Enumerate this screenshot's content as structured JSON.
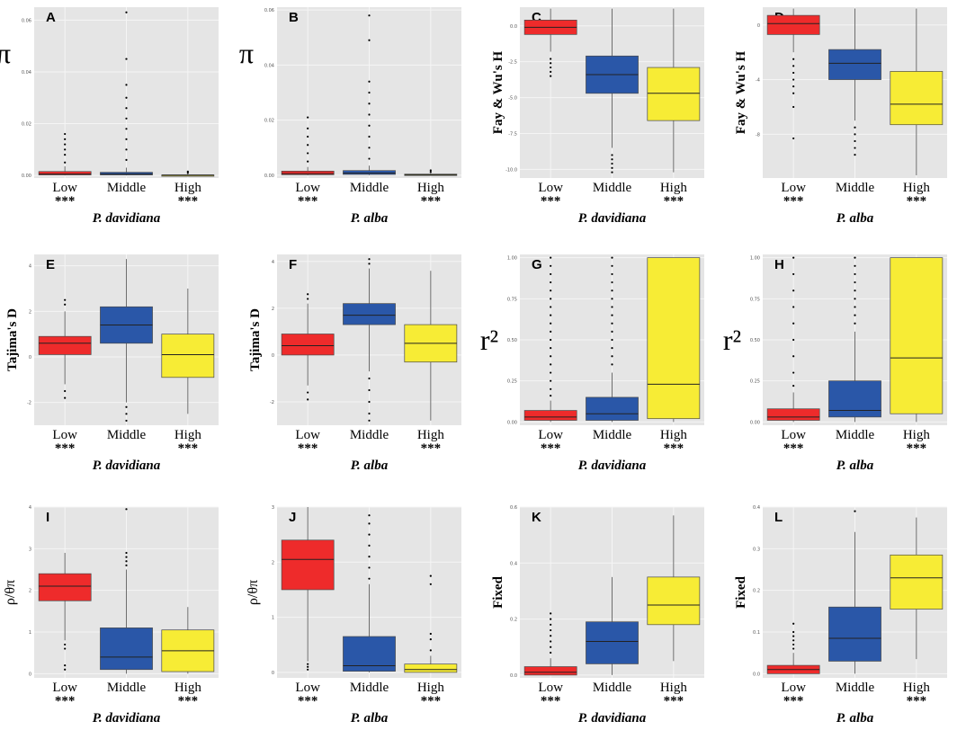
{
  "colors": {
    "panel_bg": "#e5e5e5",
    "grid": "#f5f5f5",
    "Low": "#ee2b2b",
    "Middle": "#2a57a8",
    "High": "#f7ec35"
  },
  "chart_data": [
    {
      "type": "box",
      "panel": "A",
      "ylabel": "π",
      "species": "P. davidiana",
      "ylim": [
        -0.001,
        0.065
      ],
      "yticks": [
        0.0,
        0.02,
        0.04,
        0.06
      ],
      "ytick_labels": [
        "0.00",
        "0.02",
        "0.04",
        "0.06"
      ],
      "categories": [
        "Low",
        "Middle",
        "High"
      ],
      "significance": [
        "***",
        "",
        "***"
      ],
      "boxes": [
        {
          "name": "Low",
          "whislo": 0.0,
          "q1": 0.0002,
          "med": 0.0005,
          "q3": 0.0015,
          "whishi": 0.0035,
          "fliers": [
            0.005,
            0.008,
            0.01,
            0.012,
            0.014,
            0.016
          ]
        },
        {
          "name": "Middle",
          "whislo": 0.0,
          "q1": 0.0002,
          "med": 0.0005,
          "q3": 0.0012,
          "whishi": 0.003,
          "fliers": [
            0.006,
            0.01,
            0.014,
            0.018,
            0.022,
            0.026,
            0.03,
            0.035,
            0.045,
            0.063
          ]
        },
        {
          "name": "High",
          "whislo": 0.0,
          "q1": 0.0,
          "med": 0.0001,
          "q3": 0.0002,
          "whishi": 0.0006,
          "fliers": [
            0.001,
            0.0015
          ]
        }
      ]
    },
    {
      "type": "box",
      "panel": "B",
      "ylabel": "π",
      "species": "P. alba",
      "ylim": [
        -0.001,
        0.061
      ],
      "yticks": [
        0.0,
        0.02,
        0.04,
        0.06
      ],
      "ytick_labels": [
        "0.00",
        "0.02",
        "0.04",
        "0.06"
      ],
      "categories": [
        "Low",
        "Middle",
        "High"
      ],
      "significance": [
        "***",
        "",
        "***"
      ],
      "boxes": [
        {
          "name": "Low",
          "whislo": 0.0,
          "q1": 0.0002,
          "med": 0.0006,
          "q3": 0.0015,
          "whishi": 0.003,
          "fliers": [
            0.005,
            0.008,
            0.011,
            0.014,
            0.017,
            0.021
          ]
        },
        {
          "name": "Middle",
          "whislo": 0.0,
          "q1": 0.0003,
          "med": 0.0008,
          "q3": 0.0017,
          "whishi": 0.0035,
          "fliers": [
            0.006,
            0.01,
            0.014,
            0.018,
            0.022,
            0.026,
            0.03,
            0.034,
            0.049,
            0.058
          ]
        },
        {
          "name": "High",
          "whislo": 0.0,
          "q1": 0.0,
          "med": 0.0002,
          "q3": 0.0004,
          "whishi": 0.0008,
          "fliers": [
            0.0012,
            0.0018
          ]
        }
      ]
    },
    {
      "type": "box",
      "panel": "C",
      "ylabel": "Fay & Wu's H",
      "species": "P. davidiana",
      "ylim": [
        -10.6,
        1.3
      ],
      "yticks": [
        0,
        -2.5,
        -5,
        -7.5,
        -10
      ],
      "ytick_labels": [
        "0.0",
        "-2.5",
        "-5.0",
        "-7.5",
        "-10.0"
      ],
      "categories": [
        "Low",
        "Middle",
        "High"
      ],
      "significance": [
        "***",
        "",
        "***"
      ],
      "boxes": [
        {
          "name": "Low",
          "whislo": -1.8,
          "q1": -0.6,
          "med": -0.1,
          "q3": 0.4,
          "whishi": 1.2,
          "fliers": [
            -2.3,
            -2.6,
            -2.9,
            -3.2,
            -3.5
          ]
        },
        {
          "name": "Middle",
          "whislo": -8.5,
          "q1": -4.7,
          "med": -3.4,
          "q3": -2.1,
          "whishi": 1.2,
          "fliers": [
            -9.0,
            -9.3,
            -9.6,
            -9.9,
            -10.2
          ]
        },
        {
          "name": "High",
          "whislo": -10.2,
          "q1": -6.6,
          "med": -4.7,
          "q3": -2.9,
          "whishi": 1.2,
          "fliers": []
        }
      ]
    },
    {
      "type": "box",
      "panel": "D",
      "ylabel": "Fay & Wu's H",
      "species": "P. alba",
      "ylim": [
        -11.2,
        1.3
      ],
      "yticks": [
        0,
        -4,
        -8
      ],
      "ytick_labels": [
        "0",
        "-4",
        "-8"
      ],
      "categories": [
        "Low",
        "Middle",
        "High"
      ],
      "significance": [
        "***",
        "",
        "***"
      ],
      "boxes": [
        {
          "name": "Low",
          "whislo": -2.0,
          "q1": -0.7,
          "med": 0.1,
          "q3": 0.7,
          "whishi": 1.2,
          "fliers": [
            -2.5,
            -3.0,
            -3.5,
            -4.0,
            -4.5,
            -5.0,
            -6.0,
            -8.3
          ]
        },
        {
          "name": "Middle",
          "whislo": -7.0,
          "q1": -4.0,
          "med": -2.8,
          "q3": -1.8,
          "whishi": 1.2,
          "fliers": [
            -7.5,
            -8.0,
            -8.5,
            -9.0,
            -9.5
          ]
        },
        {
          "name": "High",
          "whislo": -11.0,
          "q1": -7.3,
          "med": -5.8,
          "q3": -3.4,
          "whishi": 1.2,
          "fliers": []
        }
      ]
    },
    {
      "type": "box",
      "panel": "E",
      "ylabel": "Tajima's D",
      "species": "P. davidiana",
      "ylim": [
        -3.0,
        4.5
      ],
      "yticks": [
        -2,
        0,
        2,
        4
      ],
      "ytick_labels": [
        "-2",
        "0",
        "2",
        "4"
      ],
      "categories": [
        "Low",
        "Middle",
        "High"
      ],
      "significance": [
        "***",
        "",
        "***"
      ],
      "boxes": [
        {
          "name": "Low",
          "whislo": -1.2,
          "q1": 0.1,
          "med": 0.6,
          "q3": 0.9,
          "whishi": 2.0,
          "fliers": [
            2.3,
            2.5,
            -1.5,
            -1.8
          ]
        },
        {
          "name": "Middle",
          "whislo": -2.0,
          "q1": 0.6,
          "med": 1.4,
          "q3": 2.2,
          "whishi": 4.3,
          "fliers": [
            -2.2,
            -2.5,
            -2.8
          ]
        },
        {
          "name": "High",
          "whislo": -2.5,
          "q1": -0.9,
          "med": 0.1,
          "q3": 1.0,
          "whishi": 3.0,
          "fliers": []
        }
      ]
    },
    {
      "type": "box",
      "panel": "F",
      "ylabel": "Tajima's D",
      "species": "P. alba",
      "ylim": [
        -3.0,
        4.3
      ],
      "yticks": [
        -2,
        0,
        2,
        4
      ],
      "ytick_labels": [
        "-2",
        "0",
        "2",
        "4"
      ],
      "categories": [
        "Low",
        "Middle",
        "High"
      ],
      "significance": [
        "***",
        "",
        "***"
      ],
      "boxes": [
        {
          "name": "Low",
          "whislo": -1.3,
          "q1": 0.0,
          "med": 0.4,
          "q3": 0.9,
          "whishi": 2.2,
          "fliers": [
            2.4,
            2.6,
            -1.6,
            -1.9
          ]
        },
        {
          "name": "Middle",
          "whislo": -0.7,
          "q1": 1.3,
          "med": 1.7,
          "q3": 2.2,
          "whishi": 3.7,
          "fliers": [
            3.9,
            4.1,
            -1.0,
            -1.5,
            -2.0,
            -2.5,
            -2.8
          ]
        },
        {
          "name": "High",
          "whislo": -2.8,
          "q1": -0.3,
          "med": 0.5,
          "q3": 1.3,
          "whishi": 3.6,
          "fliers": []
        }
      ]
    },
    {
      "type": "box",
      "panel": "G",
      "ylabel": "r²",
      "species": "P. davidiana",
      "ylim": [
        -0.02,
        1.02
      ],
      "yticks": [
        0.0,
        0.25,
        0.5,
        0.75,
        1.0
      ],
      "ytick_labels": [
        "0.00",
        "0.25",
        "0.50",
        "0.75",
        "1.00"
      ],
      "categories": [
        "Low",
        "Middle",
        "High"
      ],
      "significance": [
        "***",
        "",
        "***"
      ],
      "boxes": [
        {
          "name": "Low",
          "whislo": 0.0,
          "q1": 0.01,
          "med": 0.03,
          "q3": 0.07,
          "whishi": 0.13,
          "fliers": [
            0.16,
            0.2,
            0.25,
            0.3,
            0.35,
            0.4,
            0.45,
            0.5,
            0.55,
            0.6,
            0.65,
            0.7,
            0.75,
            0.8,
            0.85,
            0.9,
            0.95,
            1.0
          ]
        },
        {
          "name": "Middle",
          "whislo": 0.0,
          "q1": 0.01,
          "med": 0.05,
          "q3": 0.15,
          "whishi": 0.3,
          "fliers": [
            0.35,
            0.4,
            0.45,
            0.5,
            0.55,
            0.6,
            0.65,
            0.7,
            0.75,
            0.8,
            0.85,
            0.9,
            0.95,
            1.0
          ]
        },
        {
          "name": "High",
          "whislo": 0.0,
          "q1": 0.02,
          "med": 0.23,
          "q3": 1.0,
          "whishi": 1.0,
          "fliers": []
        }
      ]
    },
    {
      "type": "box",
      "panel": "H",
      "ylabel": "r²",
      "species": "P. alba",
      "ylim": [
        -0.02,
        1.02
      ],
      "yticks": [
        0.0,
        0.25,
        0.5,
        0.75,
        1.0
      ],
      "ytick_labels": [
        "0.00",
        "0.25",
        "0.50",
        "0.75",
        "1.00"
      ],
      "categories": [
        "Low",
        "Middle",
        "High"
      ],
      "significance": [
        "***",
        "",
        "***"
      ],
      "boxes": [
        {
          "name": "Low",
          "whislo": 0.0,
          "q1": 0.01,
          "med": 0.03,
          "q3": 0.08,
          "whishi": 0.18,
          "fliers": [
            0.22,
            0.3,
            0.4,
            0.5,
            0.6,
            0.7,
            0.8,
            0.9,
            1.0
          ]
        },
        {
          "name": "Middle",
          "whislo": 0.0,
          "q1": 0.03,
          "med": 0.07,
          "q3": 0.25,
          "whishi": 0.55,
          "fliers": [
            0.6,
            0.65,
            0.7,
            0.75,
            0.8,
            0.85,
            0.9,
            0.95,
            1.0
          ]
        },
        {
          "name": "High",
          "whislo": 0.0,
          "q1": 0.05,
          "med": 0.39,
          "q3": 1.0,
          "whishi": 1.0,
          "fliers": []
        }
      ]
    },
    {
      "type": "box",
      "panel": "I",
      "ylabel": "ρ/θπ",
      "species": "P. davidiana",
      "ylim": [
        -0.1,
        4.0
      ],
      "yticks": [
        0,
        1,
        2,
        3,
        4
      ],
      "ytick_labels": [
        "0",
        "1",
        "2",
        "3",
        "4"
      ],
      "categories": [
        "Low",
        "Middle",
        "High"
      ],
      "significance": [
        "***",
        "",
        "***"
      ],
      "boxes": [
        {
          "name": "Low",
          "whislo": 0.8,
          "q1": 1.75,
          "med": 2.1,
          "q3": 2.4,
          "whishi": 2.9,
          "fliers": [
            0.7,
            0.6,
            0.2,
            0.1
          ]
        },
        {
          "name": "Middle",
          "whislo": 0.0,
          "q1": 0.1,
          "med": 0.4,
          "q3": 1.1,
          "whishi": 2.5,
          "fliers": [
            2.6,
            2.7,
            2.8,
            2.9,
            3.95
          ]
        },
        {
          "name": "High",
          "whislo": 0.0,
          "q1": 0.05,
          "med": 0.55,
          "q3": 1.05,
          "whishi": 1.6,
          "fliers": []
        }
      ]
    },
    {
      "type": "box",
      "panel": "J",
      "ylabel": "ρ/θπ",
      "species": "P. alba",
      "ylim": [
        -0.1,
        3.0
      ],
      "yticks": [
        0,
        1,
        2,
        3
      ],
      "ytick_labels": [
        "0",
        "1",
        "2",
        "3"
      ],
      "categories": [
        "Low",
        "Middle",
        "High"
      ],
      "significance": [
        "***",
        "",
        "***"
      ],
      "boxes": [
        {
          "name": "Low",
          "whislo": 0.2,
          "q1": 1.5,
          "med": 2.05,
          "q3": 2.4,
          "whishi": 3.0,
          "fliers": [
            0.15,
            0.1,
            0.05
          ]
        },
        {
          "name": "Middle",
          "whislo": 0.0,
          "q1": 0.02,
          "med": 0.12,
          "q3": 0.65,
          "whishi": 1.6,
          "fliers": [
            1.7,
            1.9,
            2.1,
            2.3,
            2.5,
            2.7,
            2.85
          ]
        },
        {
          "name": "High",
          "whislo": 0.0,
          "q1": 0.0,
          "med": 0.05,
          "q3": 0.15,
          "whishi": 0.3,
          "fliers": [
            0.4,
            0.6,
            0.7,
            1.6,
            1.75
          ]
        }
      ]
    },
    {
      "type": "box",
      "panel": "K",
      "ylabel": "Fixed",
      "species": "P. davidiana",
      "ylim": [
        -0.01,
        0.6
      ],
      "yticks": [
        0.0,
        0.2,
        0.4,
        0.6
      ],
      "ytick_labels": [
        "0.0",
        "0.2",
        "0.4",
        "0.6"
      ],
      "categories": [
        "Low",
        "Middle",
        "High"
      ],
      "significance": [
        "***",
        "",
        "***"
      ],
      "boxes": [
        {
          "name": "Low",
          "whislo": 0.0,
          "q1": 0.0,
          "med": 0.01,
          "q3": 0.03,
          "whishi": 0.06,
          "fliers": [
            0.08,
            0.1,
            0.12,
            0.14,
            0.16,
            0.18,
            0.2,
            0.22
          ]
        },
        {
          "name": "Middle",
          "whislo": 0.0,
          "q1": 0.04,
          "med": 0.12,
          "q3": 0.19,
          "whishi": 0.35,
          "fliers": []
        },
        {
          "name": "High",
          "whislo": 0.05,
          "q1": 0.18,
          "med": 0.25,
          "q3": 0.35,
          "whishi": 0.57,
          "fliers": []
        }
      ]
    },
    {
      "type": "box",
      "panel": "L",
      "ylabel": "Fixed",
      "species": "P. alba",
      "ylim": [
        -0.01,
        0.4
      ],
      "yticks": [
        0.0,
        0.1,
        0.2,
        0.3,
        0.4
      ],
      "ytick_labels": [
        "0.0",
        "0.1",
        "0.2",
        "0.3",
        "0.4"
      ],
      "categories": [
        "Low",
        "Middle",
        "High"
      ],
      "significance": [
        "***",
        "",
        "***"
      ],
      "boxes": [
        {
          "name": "Low",
          "whislo": 0.0,
          "q1": 0.0,
          "med": 0.01,
          "q3": 0.02,
          "whishi": 0.05,
          "fliers": [
            0.06,
            0.07,
            0.08,
            0.09,
            0.1,
            0.12
          ]
        },
        {
          "name": "Middle",
          "whislo": 0.0,
          "q1": 0.03,
          "med": 0.085,
          "q3": 0.16,
          "whishi": 0.34,
          "fliers": [
            0.39
          ]
        },
        {
          "name": "High",
          "whislo": 0.035,
          "q1": 0.155,
          "med": 0.23,
          "q3": 0.285,
          "whishi": 0.375,
          "fliers": []
        }
      ]
    }
  ]
}
